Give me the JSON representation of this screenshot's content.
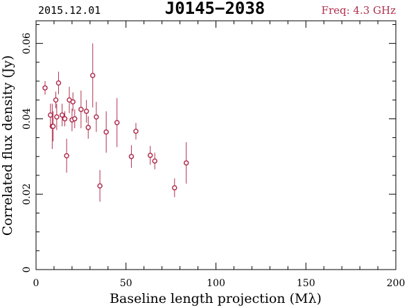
{
  "header": {
    "date": "2015.12.01",
    "source": "J0145−2038",
    "frequency": "Freq: 4.3 GHz"
  },
  "colors": {
    "accent": "#b0304f",
    "axes": "#000000"
  },
  "chart_data": {
    "type": "scatter",
    "xlabel": "Baseline length projection (Mλ)",
    "ylabel": "Correlated flux density (Jy)",
    "xlim": [
      0,
      200
    ],
    "ylim": [
      0,
      0.066
    ],
    "xticks": [
      0,
      50,
      100,
      150,
      200
    ],
    "xtick_labels": [
      "0",
      "50",
      "100",
      "150",
      "200"
    ],
    "yticks": [
      0,
      0.02,
      0.04,
      0.06
    ],
    "ytick_labels": [
      "0",
      "0.02",
      "0.04",
      "0.06"
    ],
    "grid": false,
    "marker": "open-circle-with-errorbar",
    "points": [
      {
        "x": 5,
        "y": 0.0482,
        "err": 0.0018
      },
      {
        "x": 8,
        "y": 0.041,
        "err": 0.003
      },
      {
        "x": 9,
        "y": 0.038,
        "err": 0.006
      },
      {
        "x": 9.5,
        "y": 0.038,
        "err": 0.004
      },
      {
        "x": 11,
        "y": 0.045,
        "err": 0.0022
      },
      {
        "x": 11.5,
        "y": 0.0405,
        "err": 0.0035
      },
      {
        "x": 12.5,
        "y": 0.0495,
        "err": 0.003
      },
      {
        "x": 14.5,
        "y": 0.041,
        "err": 0.003
      },
      {
        "x": 16,
        "y": 0.04,
        "err": 0.002
      },
      {
        "x": 17,
        "y": 0.0302,
        "err": 0.0045
      },
      {
        "x": 18.5,
        "y": 0.045,
        "err": 0.0035
      },
      {
        "x": 20,
        "y": 0.0397,
        "err": 0.003
      },
      {
        "x": 20.5,
        "y": 0.0445,
        "err": 0.0025
      },
      {
        "x": 21.5,
        "y": 0.04,
        "err": 0.0025
      },
      {
        "x": 25,
        "y": 0.0425,
        "err": 0.005
      },
      {
        "x": 28,
        "y": 0.042,
        "err": 0.003
      },
      {
        "x": 29,
        "y": 0.0377,
        "err": 0.003
      },
      {
        "x": 31.5,
        "y": 0.0515,
        "err": 0.0085
      },
      {
        "x": 33.5,
        "y": 0.0405,
        "err": 0.004
      },
      {
        "x": 35.5,
        "y": 0.0222,
        "err": 0.0042
      },
      {
        "x": 39,
        "y": 0.0365,
        "err": 0.0055
      },
      {
        "x": 45,
        "y": 0.039,
        "err": 0.0065
      },
      {
        "x": 53,
        "y": 0.03,
        "err": 0.003
      },
      {
        "x": 55.5,
        "y": 0.0367,
        "err": 0.0022
      },
      {
        "x": 63.5,
        "y": 0.0303,
        "err": 0.0025
      },
      {
        "x": 66,
        "y": 0.0288,
        "err": 0.0022
      },
      {
        "x": 77,
        "y": 0.0217,
        "err": 0.0025
      },
      {
        "x": 83.5,
        "y": 0.0283,
        "err": 0.0055
      }
    ]
  }
}
